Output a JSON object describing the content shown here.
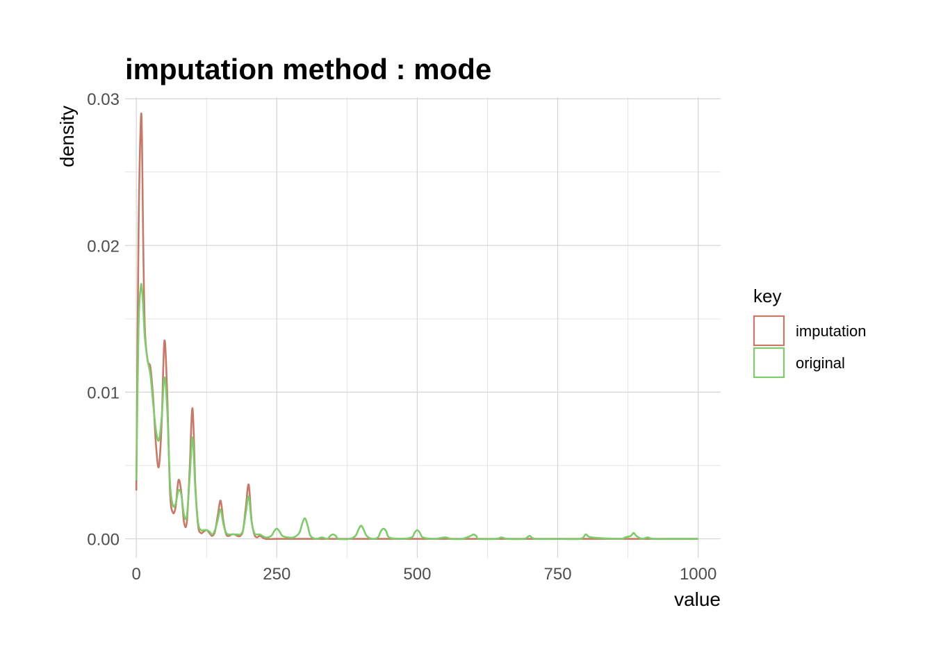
{
  "chart_data": {
    "type": "line",
    "title": "imputation method : mode",
    "xlabel": "value",
    "ylabel": "density",
    "xlim": [
      -20,
      1040
    ],
    "ylim": [
      -0.0013,
      0.0301
    ],
    "x_ticks": [
      0,
      250,
      500,
      750,
      1000
    ],
    "x_tick_labels": [
      "0",
      "250",
      "500",
      "750",
      "1000"
    ],
    "y_ticks": [
      0,
      0.01,
      0.02,
      0.03
    ],
    "y_tick_labels": [
      "0.00",
      "0.01",
      "0.02",
      "0.03"
    ],
    "grid": true,
    "legend": {
      "title": "key",
      "position": "right"
    },
    "series": [
      {
        "name": "imputation",
        "color": "#c87865",
        "x": [
          0,
          4,
          8,
          10,
          12,
          15,
          20,
          25,
          30,
          35,
          40,
          45,
          50,
          55,
          60,
          65,
          70,
          75,
          80,
          85,
          90,
          95,
          100,
          105,
          110,
          115,
          120,
          125,
          130,
          135,
          140,
          145,
          150,
          155,
          160,
          165,
          170,
          175,
          180,
          185,
          190,
          195,
          200,
          205,
          210,
          215,
          220,
          230,
          250,
          300,
          400,
          500,
          600,
          700,
          800,
          900,
          1000
        ],
        "y": [
          0.0033,
          0.021,
          0.0285,
          0.0275,
          0.021,
          0.0145,
          0.0122,
          0.0117,
          0.0096,
          0.0064,
          0.0049,
          0.0078,
          0.0135,
          0.0098,
          0.0032,
          0.0018,
          0.0022,
          0.004,
          0.0032,
          0.0011,
          0.0012,
          0.0048,
          0.0089,
          0.0037,
          0.0009,
          0.0004,
          0.0005,
          0.0006,
          0.0004,
          0.0002,
          0.0005,
          0.0016,
          0.0026,
          0.0012,
          0.0003,
          0.0002,
          0.0003,
          0.0003,
          0.0002,
          0.0002,
          0.0006,
          0.0022,
          0.0037,
          0.0013,
          0.0003,
          0.0001,
          0.0002,
          0.0,
          0.0,
          0.0,
          0.0,
          0.0,
          0.0,
          0.0,
          0.0,
          0.0,
          0.0
        ]
      },
      {
        "name": "original",
        "color": "#7ccc6a",
        "x": [
          0,
          4,
          8,
          10,
          12,
          15,
          20,
          25,
          30,
          35,
          40,
          45,
          50,
          55,
          60,
          65,
          70,
          75,
          80,
          85,
          90,
          95,
          100,
          105,
          110,
          115,
          120,
          125,
          130,
          135,
          140,
          145,
          150,
          155,
          160,
          165,
          170,
          175,
          180,
          185,
          190,
          195,
          200,
          205,
          210,
          215,
          220,
          230,
          240,
          245,
          250,
          255,
          260,
          270,
          280,
          290,
          295,
          300,
          305,
          310,
          320,
          330,
          340,
          345,
          350,
          355,
          360,
          380,
          390,
          395,
          400,
          405,
          410,
          420,
          430,
          435,
          440,
          445,
          450,
          470,
          490,
          495,
          500,
          505,
          510,
          530,
          550,
          560,
          580,
          595,
          600,
          605,
          610,
          640,
          650,
          660,
          690,
          700,
          710,
          750,
          790,
          800,
          810,
          860,
          870,
          880,
          885,
          890,
          900,
          910,
          920,
          950,
          1000
        ],
        "y": [
          0.004,
          0.0145,
          0.0172,
          0.017,
          0.016,
          0.0138,
          0.0122,
          0.0112,
          0.0092,
          0.0074,
          0.0067,
          0.0082,
          0.011,
          0.0088,
          0.0038,
          0.0023,
          0.0024,
          0.0033,
          0.003,
          0.0016,
          0.0016,
          0.0042,
          0.0069,
          0.0034,
          0.0011,
          0.0006,
          0.0006,
          0.0006,
          0.0005,
          0.0003,
          0.0006,
          0.0013,
          0.002,
          0.001,
          0.0004,
          0.0003,
          0.0003,
          0.0003,
          0.0003,
          0.0003,
          0.0006,
          0.0018,
          0.0029,
          0.0012,
          0.0004,
          0.0003,
          0.0003,
          0.0001,
          0.0002,
          0.0005,
          0.0007,
          0.0005,
          0.0002,
          0.0001,
          0.0001,
          0.0004,
          0.001,
          0.0014,
          0.0009,
          0.0002,
          0.0,
          0.0001,
          0.0,
          0.0002,
          0.0003,
          0.0002,
          0.0,
          0.0,
          0.0002,
          0.0006,
          0.0009,
          0.0006,
          0.0002,
          0.0,
          0.0001,
          0.0005,
          0.0007,
          0.0005,
          0.0001,
          0.0,
          0.0001,
          0.0004,
          0.0006,
          0.0004,
          0.0001,
          0.0,
          0.0001,
          0.0,
          0.0,
          0.0002,
          0.0003,
          0.0002,
          0.0,
          0.0,
          0.0001,
          0.0,
          0.0,
          0.0002,
          0.0,
          0.0,
          0.0,
          0.0003,
          0.0001,
          0.0,
          0.0001,
          0.0002,
          0.0004,
          0.0002,
          0.0,
          0.0001,
          0.0,
          0.0,
          0.0
        ]
      }
    ]
  }
}
